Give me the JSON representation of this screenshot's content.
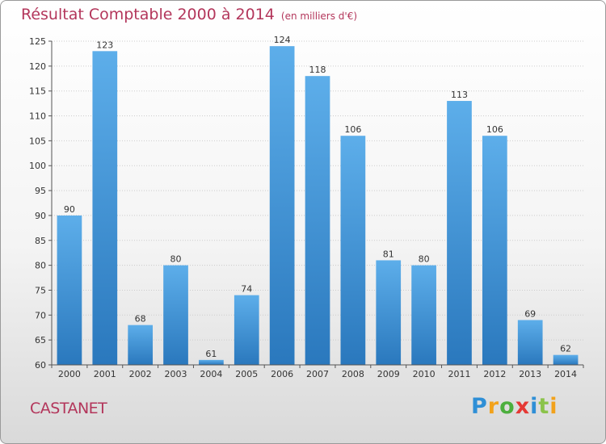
{
  "chart_data": {
    "type": "bar",
    "title": "Résultat Comptable 2000 à 2014",
    "subtitle": "(en milliers d'€)",
    "xlabel": "",
    "ylabel": "",
    "categories": [
      "2000",
      "2001",
      "2002",
      "2003",
      "2004",
      "2005",
      "2006",
      "2007",
      "2008",
      "2009",
      "2010",
      "2011",
      "2012",
      "2013",
      "2014"
    ],
    "values": [
      90,
      123,
      68,
      80,
      61,
      74,
      124,
      118,
      106,
      81,
      80,
      113,
      106,
      69,
      62
    ],
    "ylim": [
      60,
      125
    ],
    "yticks": [
      60,
      65,
      70,
      75,
      80,
      85,
      90,
      95,
      100,
      105,
      110,
      115,
      120,
      125
    ],
    "grid": true,
    "legend": "none"
  },
  "commune": "CASTANET",
  "logo": {
    "letters": [
      "P",
      "r",
      "o",
      "x",
      "i",
      "t",
      "i"
    ],
    "colors": [
      "#2f8fd6",
      "#f2a21b",
      "#4caf3e",
      "#e53935",
      "#2f8fd6",
      "#8bc34a",
      "#f2a21b"
    ]
  },
  "colors": {
    "bar_top": "#5daeea",
    "bar_bottom": "#2a78bd",
    "title": "#b3365b",
    "grid": "#cccccc"
  }
}
